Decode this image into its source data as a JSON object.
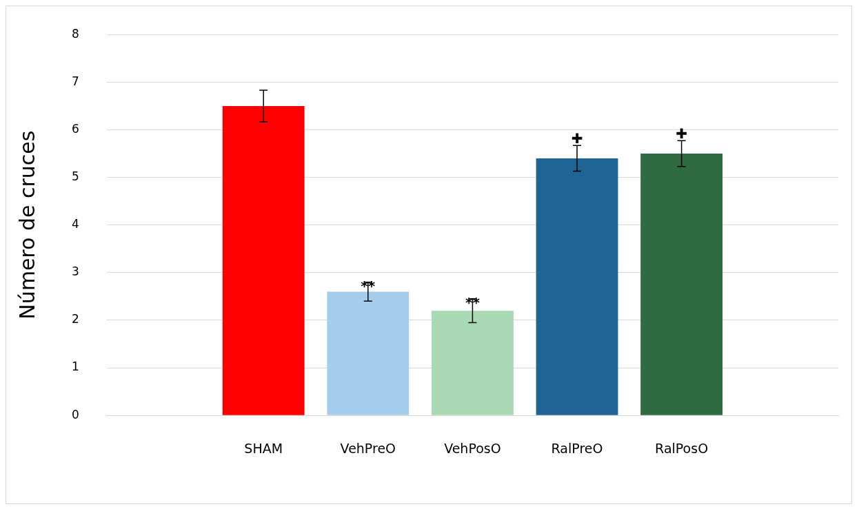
{
  "chart_data": {
    "type": "bar",
    "ylabel": "Número de cruces",
    "categories": [
      null,
      "SHAM",
      "VehPreO",
      "VehPosO",
      "RalPreO",
      "RalPosO",
      null
    ],
    "values": [
      null,
      6.5,
      2.6,
      2.2,
      5.4,
      5.5,
      null
    ],
    "colors": [
      "#ff0000",
      "#ff0000",
      "#a5cdec",
      "#a9dab5",
      "#1f6495",
      "#306a40",
      "#306a40"
    ],
    "errors": [
      null,
      0.33,
      0.2,
      0.25,
      0.27,
      0.27,
      null
    ],
    "ylim": [
      0,
      8
    ],
    "yticks": [
      0,
      1,
      2,
      3,
      4,
      5,
      6,
      7,
      8
    ],
    "grid": "y",
    "legend": false,
    "annotations": [
      {
        "text": "**",
        "x": "VehPreO",
        "y": 2.8
      },
      {
        "text": "**",
        "x": "VehPosO",
        "y": 2.45
      },
      {
        "text": "✚",
        "x": "RalPreO",
        "y": 5.67
      },
      {
        "text": "✚",
        "x": "RalPosO",
        "y": 5.77
      }
    ]
  }
}
